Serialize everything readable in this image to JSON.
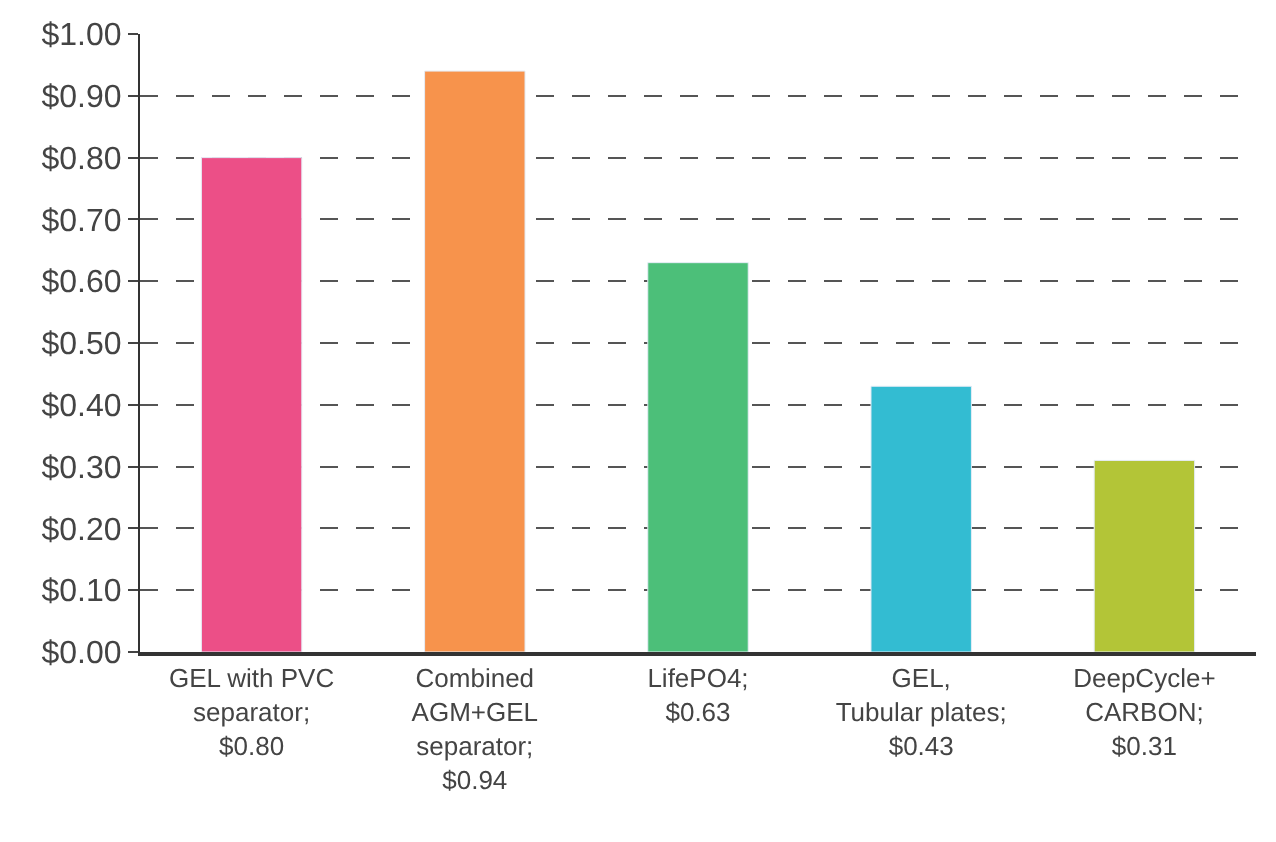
{
  "chart_data": {
    "type": "bar",
    "categories": [
      "GEL with PVC\nseparator;\n$0.80",
      "Combined\nAGM+GEL\nseparator;\n$0.94",
      "LifePO4;\n$0.63",
      "GEL,\nTubular plates;\n$0.43",
      "DeepCycle+\nCARBON;\n$0.31"
    ],
    "values": [
      0.8,
      0.94,
      0.63,
      0.43,
      0.31
    ],
    "colors": [
      "#ec4f87",
      "#f7934c",
      "#4cbf79",
      "#33bcd2",
      "#b3c537"
    ],
    "ylim": [
      0,
      1.0
    ],
    "yticks": [
      {
        "value": 0,
        "label": "$0.00"
      },
      {
        "value": 0.1,
        "label": "$0.10"
      },
      {
        "value": 0.2,
        "label": "$0.20"
      },
      {
        "value": 0.3,
        "label": "$0.30"
      },
      {
        "value": 0.4,
        "label": "$0.40"
      },
      {
        "value": 0.5,
        "label": "$0.50"
      },
      {
        "value": 0.6,
        "label": "$0.60"
      },
      {
        "value": 0.7,
        "label": "$0.70"
      },
      {
        "value": 0.8,
        "label": "$0.80"
      },
      {
        "value": 0.9,
        "label": "$0.90"
      },
      {
        "value": 1.0,
        "label": "$1.00"
      }
    ],
    "grid": "y"
  }
}
